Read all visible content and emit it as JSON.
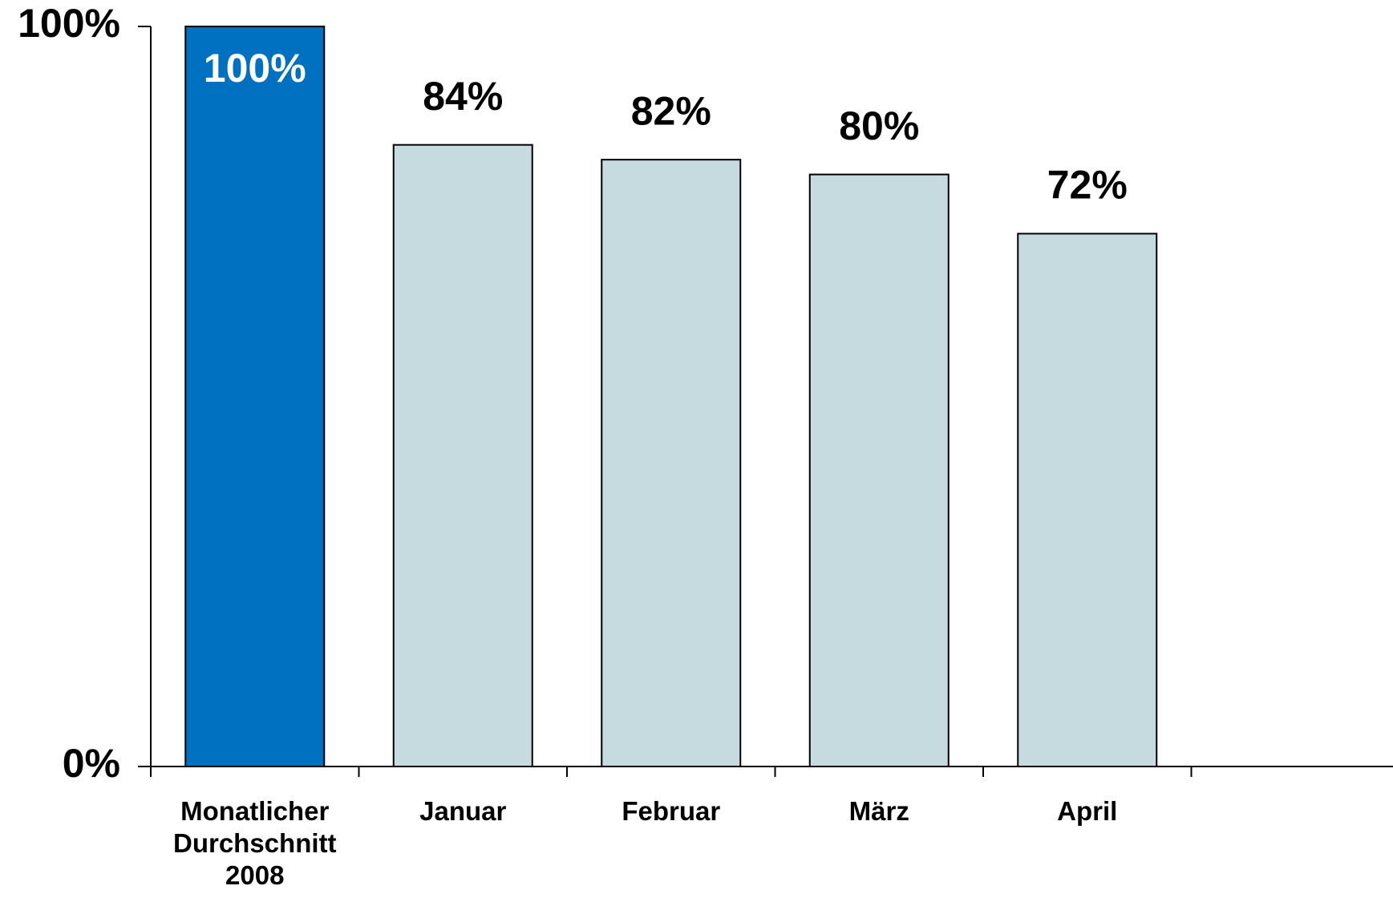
{
  "chart_data": {
    "type": "bar",
    "categories": [
      "Monatlicher Durchschnitt 2008",
      "Januar",
      "Februar",
      "März",
      "April"
    ],
    "values": [
      100,
      84,
      82,
      80,
      72
    ],
    "value_labels": [
      "100%",
      "84%",
      "82%",
      "80%",
      "72%"
    ],
    "colors": [
      "#0070c0",
      "#c5dbe0",
      "#c5dbe0",
      "#c5dbe0",
      "#c5dbe0"
    ],
    "ylim": [
      0,
      100
    ],
    "yticks": [
      {
        "value": 0,
        "label": "0%"
      },
      {
        "value": 100,
        "label": "100%"
      }
    ],
    "grid": false
  }
}
